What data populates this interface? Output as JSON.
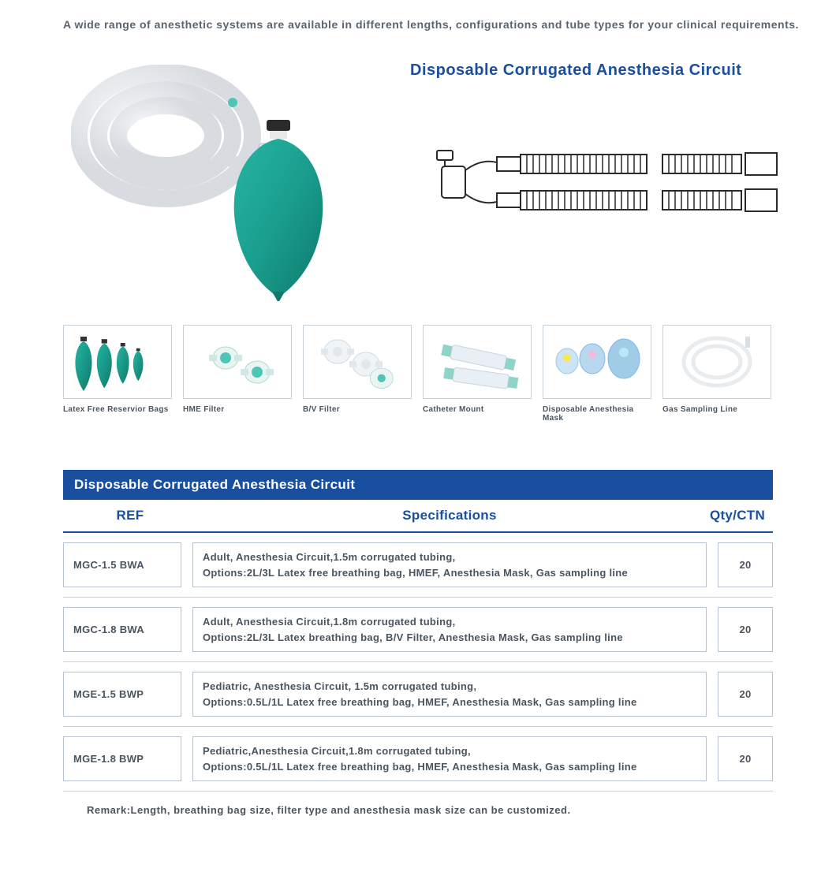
{
  "intro_text": "A wide range of anesthetic systems are available in different lengths, configurations and tube types for your clinical requirements.",
  "product_title": "Disposable Corrugated Anesthesia Circuit",
  "colors": {
    "brand_blue": "#1a4fa0",
    "text_gray": "#5a6570",
    "border_gray": "#c8d0d8",
    "cell_border": "#b8c2cc",
    "bag_teal": "#1a9e8e",
    "bag_teal_dark": "#0d7a6c",
    "tube_gray": "#d8dce0",
    "mask_blue": "#7eb8e8",
    "filter_teal": "#4ec5b5",
    "filter_clear": "#e8eef2"
  },
  "thumbnails": [
    {
      "label": "Latex Free Reservior Bags",
      "type": "bags"
    },
    {
      "label": "HME Filter",
      "type": "hme"
    },
    {
      "label": "B/V Filter",
      "type": "bv"
    },
    {
      "label": "Catheter Mount",
      "type": "catheter"
    },
    {
      "label": "Disposable Anesthesia Mask",
      "type": "mask"
    },
    {
      "label": "Gas Sampling Line",
      "type": "line"
    }
  ],
  "table": {
    "title": "Disposable Corrugated Anesthesia Circuit",
    "columns": [
      "REF",
      "Specifications",
      "Qty/CTN"
    ],
    "rows": [
      {
        "ref": "MGC-1.5 BWA",
        "spec": "Adult, Anesthesia Circuit,1.5m corrugated tubing,\nOptions:2L/3L Latex free breathing bag, HMEF, Anesthesia Mask, Gas sampling line",
        "qty": "20"
      },
      {
        "ref": "MGC-1.8 BWA",
        "spec": "Adult, Anesthesia Circuit,1.8m corrugated tubing,\nOptions:2L/3L Latex breathing bag, B/V Filter, Anesthesia Mask, Gas sampling line",
        "qty": "20"
      },
      {
        "ref": "MGE-1.5 BWP",
        "spec": "Pediatric, Anesthesia Circuit, 1.5m corrugated tubing,\nOptions:0.5L/1L Latex free breathing bag, HMEF, Anesthesia Mask, Gas sampling line",
        "qty": "20"
      },
      {
        "ref": "MGE-1.8 BWP",
        "spec": "Pediatric,Anesthesia Circuit,1.8m corrugated tubing,\nOptions:0.5L/1L Latex free breathing bag, HMEF, Anesthesia Mask, Gas sampling line",
        "qty": "20"
      }
    ]
  },
  "remark": "Remark:Length, breathing bag size, filter type and anesthesia mask size can be customized."
}
